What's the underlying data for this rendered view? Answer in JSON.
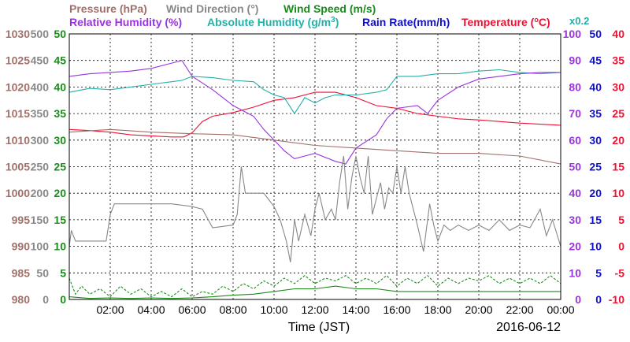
{
  "chart_data": {
    "type": "line",
    "xlabel": "Time (JST)",
    "date": "2016-06-12",
    "x_ticks": [
      "02:00",
      "04:00",
      "06:00",
      "08:00",
      "10:00",
      "12:00",
      "14:00",
      "16:00",
      "18:00",
      "20:00",
      "22:00",
      "00:00"
    ],
    "x_range_hours": [
      0,
      24
    ],
    "grid": true,
    "legend_placement": "top",
    "legend": {
      "pressure": {
        "label": "Pressure (hPa)",
        "color": "#a0706a"
      },
      "wind_dir": {
        "label": "Wind Direction (°)",
        "color": "#888888"
      },
      "wind_speed": {
        "label": "Wind Speed (m/s)",
        "color": "#1a8c1a"
      },
      "rh": {
        "label": "Relative Humidity (%)",
        "color": "#9933dd"
      },
      "ah_prefix": "Absolute Humidity (g/m",
      "ah_sup": "3",
      "ah_suffix": ")",
      "ah_color": "#22b0a8",
      "rain": {
        "label": "Rain Rate(mm/h)",
        "color": "#1010cc"
      },
      "temp_prefix": "Temperature (",
      "temp_deg": "o",
      "temp_suffix": "C)",
      "temp_color": "#ee1133",
      "ah_scale": "x0.2"
    },
    "axes": {
      "pressure": {
        "ticks": [
          "1030",
          "1025",
          "1020",
          "1015",
          "1010",
          "1005",
          "1000",
          "995",
          "990",
          "985",
          "980"
        ],
        "range": [
          980,
          1030
        ],
        "color": "#a0706a"
      },
      "wind_dir": {
        "ticks": [
          "500",
          "450",
          "400",
          "350",
          "300",
          "250",
          "200",
          "150",
          "100",
          "50",
          "0"
        ],
        "range": [
          0,
          500
        ],
        "color": "#888888"
      },
      "wind_speed": {
        "ticks": [
          "50",
          "45",
          "40",
          "35",
          "30",
          "25",
          "20",
          "15",
          "10",
          "5",
          "0"
        ],
        "range": [
          0,
          50
        ],
        "color": "#1a8c1a"
      },
      "rh": {
        "ticks": [
          "100",
          "90",
          "80",
          "70",
          "60",
          "50",
          "40",
          "30",
          "20",
          "10",
          "0"
        ],
        "range": [
          0,
          100
        ],
        "color": "#9933dd"
      },
      "rain": {
        "ticks": [
          "50",
          "45",
          "40",
          "35",
          "30",
          "25",
          "20",
          "15",
          "10",
          "5",
          "0"
        ],
        "range": [
          0,
          50
        ],
        "color": "#1010cc"
      },
      "temp": {
        "ticks": [
          "40",
          "35",
          "30",
          "25",
          "20",
          "15",
          "10",
          "5",
          "0",
          "-5",
          "-10"
        ],
        "range": [
          -10,
          40
        ],
        "color": "#ee1133"
      }
    },
    "series": [
      {
        "key": "temp",
        "axis_range": [
          -10,
          40
        ],
        "color": "#ee1133",
        "points": [
          [
            0,
            22
          ],
          [
            1,
            21.8
          ],
          [
            2,
            21.5
          ],
          [
            3,
            21
          ],
          [
            4,
            20.8
          ],
          [
            5,
            20.6
          ],
          [
            5.6,
            20.6
          ],
          [
            6,
            21.4
          ],
          [
            6.5,
            23.5
          ],
          [
            7,
            24.5
          ],
          [
            8,
            25.2
          ],
          [
            9,
            26.2
          ],
          [
            10,
            27.5
          ],
          [
            11,
            28
          ],
          [
            12,
            29
          ],
          [
            13,
            29
          ],
          [
            14,
            28
          ],
          [
            15,
            26.5
          ],
          [
            16,
            26
          ],
          [
            17,
            25
          ],
          [
            18,
            24.5
          ],
          [
            19,
            24
          ],
          [
            20,
            23.8
          ],
          [
            21,
            23.5
          ],
          [
            22,
            23.2
          ],
          [
            23,
            23
          ],
          [
            24,
            22.8
          ]
        ]
      },
      {
        "key": "ah",
        "axis_range": [
          0,
          100
        ],
        "color": "#22b0a8",
        "points": [
          [
            0,
            78
          ],
          [
            1,
            79.5
          ],
          [
            2,
            79
          ],
          [
            3,
            80
          ],
          [
            4,
            81
          ],
          [
            5,
            82
          ],
          [
            5.5,
            82.5
          ],
          [
            6,
            84
          ],
          [
            7,
            83.5
          ],
          [
            8,
            82.5
          ],
          [
            9,
            82
          ],
          [
            9.5,
            79
          ],
          [
            10,
            77
          ],
          [
            10.5,
            76
          ],
          [
            11,
            70
          ],
          [
            11.5,
            76
          ],
          [
            12,
            74
          ],
          [
            12.5,
            76
          ],
          [
            13,
            77
          ],
          [
            14,
            77
          ],
          [
            15,
            78
          ],
          [
            15.5,
            79
          ],
          [
            16,
            84
          ],
          [
            17,
            84
          ],
          [
            18,
            85
          ],
          [
            19,
            85
          ],
          [
            20,
            86
          ],
          [
            21,
            86.5
          ],
          [
            22,
            85.5
          ],
          [
            23,
            85
          ],
          [
            24,
            85.5
          ]
        ]
      },
      {
        "key": "rh",
        "axis_range": [
          0,
          100
        ],
        "color": "#9933dd",
        "points": [
          [
            0,
            84
          ],
          [
            1,
            85
          ],
          [
            2,
            85.5
          ],
          [
            3,
            86
          ],
          [
            4,
            87
          ],
          [
            5,
            89
          ],
          [
            5.5,
            90
          ],
          [
            6,
            84
          ],
          [
            7,
            79
          ],
          [
            8,
            73
          ],
          [
            9,
            69
          ],
          [
            9.5,
            64
          ],
          [
            10,
            60
          ],
          [
            10.5,
            56
          ],
          [
            11,
            53
          ],
          [
            11.5,
            54
          ],
          [
            12,
            55
          ],
          [
            13,
            52
          ],
          [
            13.5,
            51
          ],
          [
            14,
            57
          ],
          [
            15,
            62
          ],
          [
            15.5,
            68
          ],
          [
            16,
            72
          ],
          [
            17,
            73
          ],
          [
            17.5,
            70
          ],
          [
            18,
            75
          ],
          [
            19,
            80
          ],
          [
            20,
            83
          ],
          [
            21,
            84
          ],
          [
            22,
            85
          ],
          [
            23,
            85.5
          ],
          [
            24,
            85.5
          ]
        ]
      },
      {
        "key": "pressure",
        "axis_range": [
          980,
          1030
        ],
        "color": "#a0706a",
        "points": [
          [
            0,
            1011.5
          ],
          [
            2,
            1012
          ],
          [
            4,
            1011.5
          ],
          [
            6,
            1011.2
          ],
          [
            8,
            1011
          ],
          [
            10,
            1010
          ],
          [
            12,
            1009
          ],
          [
            14,
            1008.5
          ],
          [
            16,
            1008
          ],
          [
            18,
            1007.5
          ],
          [
            20,
            1007.5
          ],
          [
            22,
            1007
          ],
          [
            24,
            1005.5
          ]
        ]
      },
      {
        "key": "wind_dir",
        "axis_range": [
          0,
          500
        ],
        "color": "#888888",
        "points": [
          [
            0,
            100
          ],
          [
            0.1,
            130
          ],
          [
            0.3,
            110
          ],
          [
            1,
            110
          ],
          [
            1.8,
            110
          ],
          [
            2,
            160
          ],
          [
            2.2,
            180
          ],
          [
            3,
            180
          ],
          [
            4,
            180
          ],
          [
            5,
            180
          ],
          [
            6,
            175
          ],
          [
            6.5,
            170
          ],
          [
            7,
            135
          ],
          [
            8,
            140
          ],
          [
            8.2,
            160
          ],
          [
            8.4,
            250
          ],
          [
            8.6,
            200
          ],
          [
            9,
            200
          ],
          [
            9.5,
            200
          ],
          [
            10,
            175
          ],
          [
            10.3,
            150
          ],
          [
            10.6,
            110
          ],
          [
            10.8,
            70
          ],
          [
            11,
            150
          ],
          [
            11.2,
            110
          ],
          [
            11.5,
            160
          ],
          [
            11.8,
            120
          ],
          [
            12,
            170
          ],
          [
            12.2,
            200
          ],
          [
            12.5,
            150
          ],
          [
            12.8,
            170
          ],
          [
            13,
            150
          ],
          [
            13.2,
            220
          ],
          [
            13.4,
            270
          ],
          [
            13.6,
            170
          ],
          [
            13.8,
            230
          ],
          [
            14,
            270
          ],
          [
            14.2,
            230
          ],
          [
            14.4,
            200
          ],
          [
            14.6,
            270
          ],
          [
            14.8,
            160
          ],
          [
            15,
            190
          ],
          [
            15.2,
            220
          ],
          [
            15.4,
            170
          ],
          [
            15.6,
            210
          ],
          [
            15.8,
            200
          ],
          [
            16,
            250
          ],
          [
            16.2,
            200
          ],
          [
            16.4,
            250
          ],
          [
            16.6,
            200
          ],
          [
            17,
            140
          ],
          [
            17.3,
            90
          ],
          [
            17.6,
            180
          ],
          [
            17.8,
            140
          ],
          [
            18,
            110
          ],
          [
            18.3,
            140
          ],
          [
            18.6,
            130
          ],
          [
            19,
            140
          ],
          [
            19.5,
            130
          ],
          [
            20,
            140
          ],
          [
            20.5,
            130
          ],
          [
            21,
            150
          ],
          [
            21.5,
            130
          ],
          [
            22,
            140
          ],
          [
            22.5,
            135
          ],
          [
            23,
            170
          ],
          [
            23.3,
            120
          ],
          [
            23.6,
            150
          ],
          [
            24,
            100
          ]
        ]
      },
      {
        "key": "wind_speed",
        "axis_range": [
          0,
          50
        ],
        "color": "#1a8c1a",
        "dashed": true,
        "points": [
          [
            0,
            4
          ],
          [
            0.3,
            1
          ],
          [
            0.6,
            2.5
          ],
          [
            1,
            1
          ],
          [
            1.5,
            2
          ],
          [
            2,
            0.5
          ],
          [
            2.5,
            2.5
          ],
          [
            3,
            1
          ],
          [
            3.5,
            2
          ],
          [
            4,
            0.5
          ],
          [
            4.5,
            1.5
          ],
          [
            5,
            0.5
          ],
          [
            5.5,
            2
          ],
          [
            6,
            0.5
          ],
          [
            6.5,
            1.5
          ],
          [
            7,
            1
          ],
          [
            7.5,
            2.5
          ],
          [
            8,
            1.5
          ],
          [
            8.5,
            3
          ],
          [
            9,
            2
          ],
          [
            9.5,
            3.5
          ],
          [
            10,
            2.5
          ],
          [
            10.5,
            4
          ],
          [
            11,
            3
          ],
          [
            11.5,
            4.5
          ],
          [
            12,
            3
          ],
          [
            12.5,
            4
          ],
          [
            13,
            3.5
          ],
          [
            13.5,
            4.5
          ],
          [
            14,
            3
          ],
          [
            14.5,
            4
          ],
          [
            15,
            3
          ],
          [
            15.5,
            4.5
          ],
          [
            16,
            2.5
          ],
          [
            16.5,
            4
          ],
          [
            17,
            3
          ],
          [
            17.5,
            4.5
          ],
          [
            18,
            2.5
          ],
          [
            18.5,
            4
          ],
          [
            19,
            3
          ],
          [
            19.5,
            4
          ],
          [
            20,
            3.5
          ],
          [
            20.5,
            4.5
          ],
          [
            21,
            3
          ],
          [
            21.5,
            4
          ],
          [
            22,
            3
          ],
          [
            22.5,
            4
          ],
          [
            23,
            3
          ],
          [
            23.5,
            4.5
          ],
          [
            24,
            3
          ]
        ]
      },
      {
        "key": "wind_speed_solid",
        "axis_range": [
          0,
          50
        ],
        "color": "#1a8c1a",
        "points": [
          [
            0,
            0.5
          ],
          [
            1,
            0.2
          ],
          [
            2,
            0.3
          ],
          [
            3,
            0.2
          ],
          [
            4,
            0.3
          ],
          [
            5,
            0.2
          ],
          [
            6,
            0.3
          ],
          [
            7,
            0.5
          ],
          [
            8,
            0.8
          ],
          [
            9,
            1
          ],
          [
            10,
            1.5
          ],
          [
            11,
            2
          ],
          [
            12,
            2
          ],
          [
            13,
            2.5
          ],
          [
            14,
            2
          ],
          [
            15,
            2
          ],
          [
            16,
            1.5
          ],
          [
            17,
            1.5
          ],
          [
            18,
            1.5
          ],
          [
            19,
            1.5
          ],
          [
            20,
            1.5
          ],
          [
            21,
            1.5
          ],
          [
            22,
            1.5
          ],
          [
            23,
            1.5
          ],
          [
            24,
            1.5
          ]
        ]
      }
    ]
  }
}
